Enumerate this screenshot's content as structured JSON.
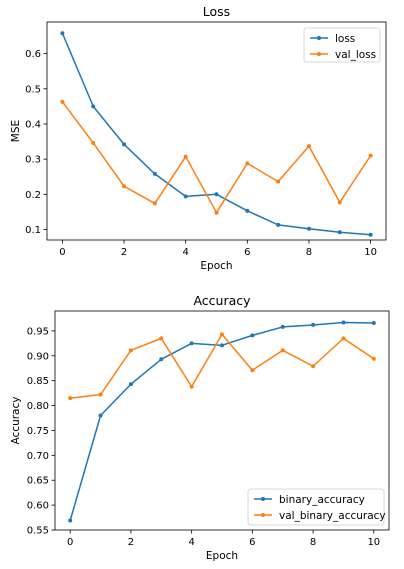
{
  "chart_data": [
    {
      "type": "line",
      "title": "Loss",
      "xlabel": "Epoch",
      "ylabel": "MSE",
      "x": [
        0,
        1,
        2,
        3,
        4,
        5,
        6,
        7,
        8,
        9,
        10
      ],
      "xlim": [
        -0.5,
        10.5
      ],
      "ylim": [
        0.07,
        0.69
      ],
      "xticks": [
        0,
        2,
        4,
        6,
        8,
        10
      ],
      "yticks": [
        0.1,
        0.2,
        0.3,
        0.4,
        0.5,
        0.6
      ],
      "grid": false,
      "legend_position": "top-right",
      "series": [
        {
          "name": "loss",
          "color": "#1f77b4",
          "marker": "point",
          "values": [
            0.658,
            0.45,
            0.342,
            0.258,
            0.194,
            0.2,
            0.153,
            0.113,
            0.102,
            0.092,
            0.085
          ]
        },
        {
          "name": "val_loss",
          "color": "#ff7f0e",
          "marker": "point",
          "values": [
            0.463,
            0.346,
            0.223,
            0.174,
            0.307,
            0.148,
            0.288,
            0.236,
            0.337,
            0.177,
            0.31
          ]
        }
      ]
    },
    {
      "type": "line",
      "title": "Accuracy",
      "xlabel": "Epoch",
      "ylabel": "Accuracy",
      "x": [
        0,
        1,
        2,
        3,
        4,
        5,
        6,
        7,
        8,
        9,
        10
      ],
      "xlim": [
        -0.5,
        10.5
      ],
      "ylim": [
        0.55,
        0.99
      ],
      "xticks": [
        0,
        2,
        4,
        6,
        8,
        10
      ],
      "yticks": [
        0.55,
        0.6,
        0.65,
        0.7,
        0.75,
        0.8,
        0.85,
        0.9,
        0.95
      ],
      "grid": false,
      "legend_position": "bottom-right",
      "series": [
        {
          "name": "binary_accuracy",
          "color": "#1f77b4",
          "marker": "point",
          "values": [
            0.569,
            0.78,
            0.843,
            0.893,
            0.925,
            0.921,
            0.941,
            0.958,
            0.962,
            0.967,
            0.966
          ]
        },
        {
          "name": "val_binary_accuracy",
          "color": "#ff7f0e",
          "marker": "point",
          "values": [
            0.815,
            0.822,
            0.911,
            0.935,
            0.838,
            0.943,
            0.871,
            0.911,
            0.879,
            0.935,
            0.894
          ]
        }
      ]
    }
  ]
}
